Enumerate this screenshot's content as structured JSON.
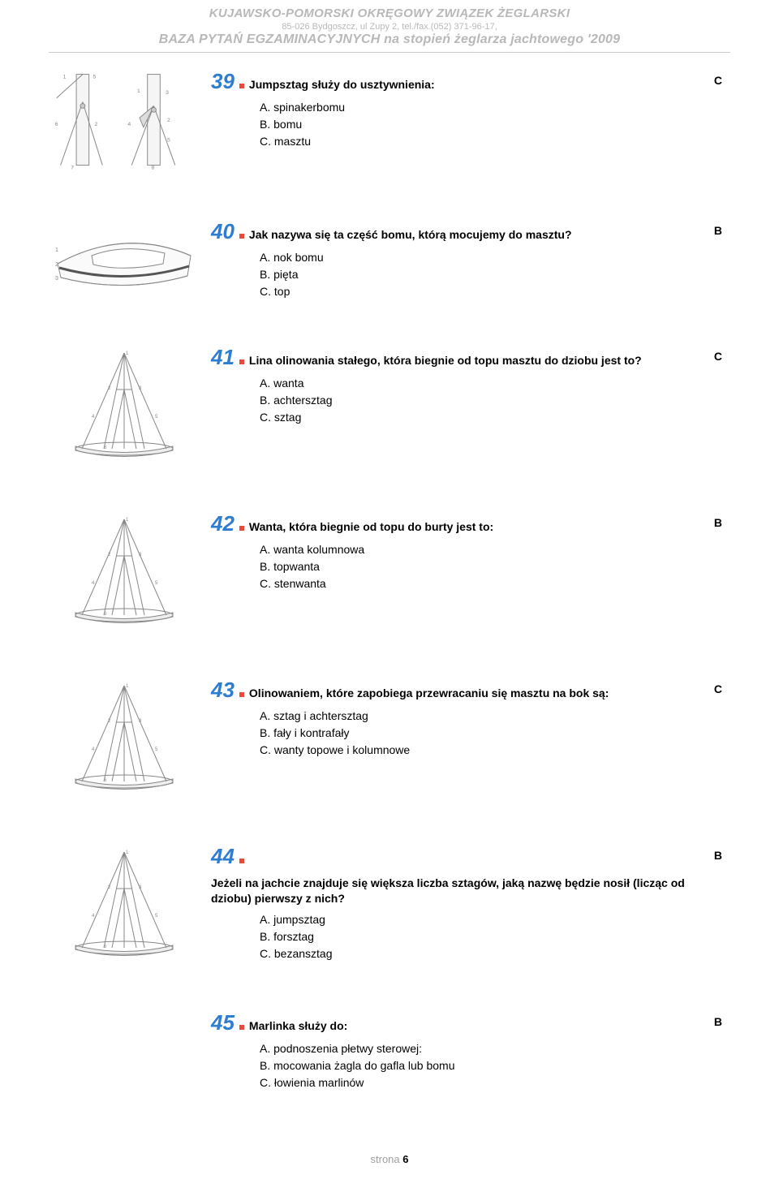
{
  "header": {
    "line1": "KUJAWSKO-POMORSKI OKRĘGOWY ZWIĄZEK ŻEGLARSKI",
    "line2": "85-026 Bydgoszcz, ul Zupy 2, tel./fax.(052) 371-96-17,",
    "line3": "BAZA PYTAŃ EGZAMINACYJNYCH na stopień żeglarza jachtowego '2009"
  },
  "questions": [
    {
      "num": "39",
      "text": "Jumpsztag służy do usztywnienia:",
      "options": [
        "A.  spinakerbomu",
        "B.  bomu",
        "C.  masztu"
      ],
      "answer": "C",
      "img": "mast-detail"
    },
    {
      "num": "40",
      "text": "Jak nazywa się ta część bomu, którą mocujemy do masztu?",
      "options": [
        "A.  nok bomu",
        "B.  pięta",
        "C.  top"
      ],
      "answer": "B",
      "img": "hull"
    },
    {
      "num": "41",
      "text": "Lina olinowania stałego, która biegnie od topu masztu do dziobu jest to?",
      "options": [
        "A.  wanta",
        "B.  achtersztag",
        "C.  sztag"
      ],
      "answer": "C",
      "img": "rigging"
    },
    {
      "num": "42",
      "text": "Wanta, która biegnie od topu do burty jest to:",
      "options": [
        "A.  wanta kolumnowa",
        "B.  topwanta",
        "C.  stenwanta"
      ],
      "answer": "B",
      "img": "rigging"
    },
    {
      "num": "43",
      "text": "Olinowaniem, które zapobiega przewracaniu się masztu na bok są:",
      "options": [
        "A.  sztag i achtersztag",
        "B.  fały i kontrafały",
        "C.  wanty topowe i kolumnowe"
      ],
      "answer": "C",
      "img": "rigging"
    },
    {
      "num": "44",
      "text": "Jeżeli na jachcie znajduje się większa liczba sztagów, jaką nazwę będzie nosił (licząc od dziobu) pierwszy z nich?",
      "options": [
        "A.  jumpsztag",
        "B.  forsztag",
        "C.  bezansztag"
      ],
      "answer": "B",
      "img": "rigging"
    },
    {
      "num": "45",
      "text": "Marlinka służy do:",
      "options": [
        "A.  podnoszenia płetwy sterowej:",
        "B.  mocowania żagla do gafla lub bomu",
        "C.  łowienia marlinów"
      ],
      "answer": "B",
      "img": "none"
    }
  ],
  "footer": {
    "label": "strona",
    "page": "6"
  },
  "colors": {
    "number": "#2f7dd1",
    "dot": "#e84a3a",
    "header_gray": "#b8b8b8"
  }
}
